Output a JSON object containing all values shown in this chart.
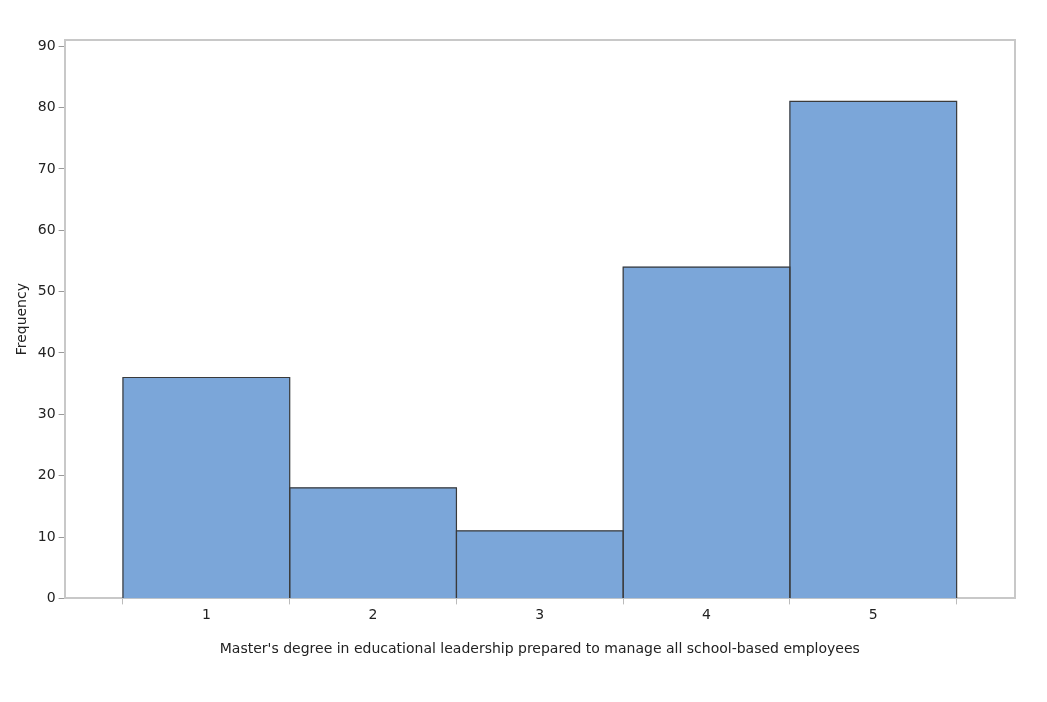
{
  "chart_data": {
    "type": "histogram",
    "xlabel": "Master's degree in educational leadership prepared to manage all school-based employees",
    "ylabel": "Frequency",
    "bins": [
      0.5,
      1.5,
      2.5,
      3.5,
      4.5,
      5.5
    ],
    "values": [
      36,
      18,
      11,
      54,
      81
    ],
    "color": "#7ba6d9",
    "xlim": [
      0.15,
      5.85
    ],
    "xticks": [
      1,
      2,
      3,
      4,
      5
    ],
    "ylim": [
      0,
      91
    ],
    "yticks": [
      0,
      10,
      20,
      30,
      40,
      50,
      60,
      70,
      80,
      90
    ],
    "grid": false,
    "legend": false
  }
}
